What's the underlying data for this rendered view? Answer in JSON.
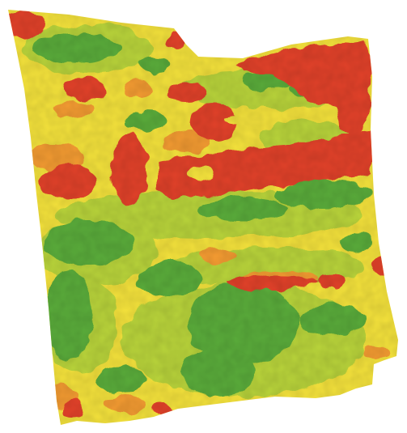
{
  "map": {
    "type": "field-heatmap",
    "palette": {
      "red": "#e2432c",
      "orange": "#f39b33",
      "yellow": "#f4e23c",
      "light_green": "#b9d43a",
      "green": "#5aac3a",
      "background": "#ffffff"
    },
    "legend": "none",
    "labels": "none"
  }
}
